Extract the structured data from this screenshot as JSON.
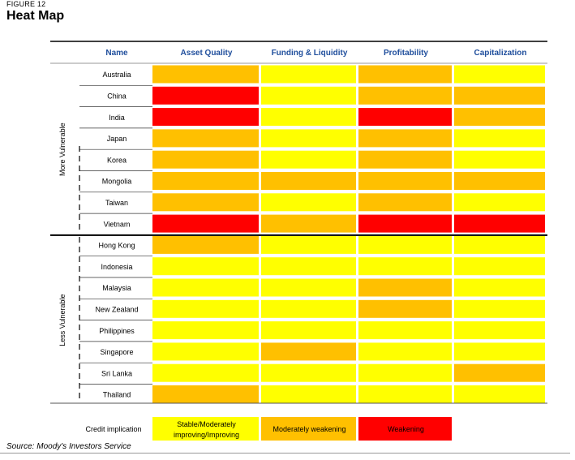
{
  "figure": {
    "label": "FIGURE 12",
    "title": "Heat Map",
    "source": "Source: Moody's Investors Service"
  },
  "colors": {
    "stable": "#ffff00",
    "moderate": "#ffc000",
    "weakening": "#ff0000",
    "header_text": "#1f4e9c"
  },
  "chart_data": {
    "type": "heatmap",
    "title": "Heat Map",
    "name_header": "Name",
    "columns": [
      "Asset Quality",
      "Funding & Liquidity",
      "Profitability",
      "Capitalization"
    ],
    "groups": [
      {
        "name": "More Vulnerable",
        "rows": [
          "Australia",
          "China",
          "India",
          "Japan",
          "Korea",
          "Mongolia",
          "Taiwan",
          "Vietnam"
        ]
      },
      {
        "name": "Less Vulnerable",
        "rows": [
          "Hong Kong",
          "Indonesia",
          "Malaysia",
          "New Zealand",
          "Philippines",
          "Singapore",
          "Sri Lanka",
          "Thailand"
        ]
      }
    ],
    "rows": [
      "Australia",
      "China",
      "India",
      "Japan",
      "Korea",
      "Mongolia",
      "Taiwan",
      "Vietnam",
      "Hong Kong",
      "Indonesia",
      "Malaysia",
      "New Zealand",
      "Philippines",
      "Singapore",
      "Sri Lanka",
      "Thailand"
    ],
    "levels": {
      "1": "Stable/Moderately improving/Improving",
      "2": "Moderately weakening",
      "3": "Weakening"
    },
    "values": [
      [
        2,
        1,
        2,
        1
      ],
      [
        3,
        1,
        2,
        2
      ],
      [
        3,
        1,
        3,
        2
      ],
      [
        2,
        1,
        2,
        1
      ],
      [
        2,
        1,
        2,
        1
      ],
      [
        2,
        2,
        2,
        2
      ],
      [
        2,
        1,
        2,
        1
      ],
      [
        3,
        2,
        3,
        3
      ],
      [
        2,
        1,
        1,
        1
      ],
      [
        1,
        1,
        1,
        1
      ],
      [
        1,
        1,
        2,
        1
      ],
      [
        1,
        1,
        2,
        1
      ],
      [
        1,
        1,
        1,
        1
      ],
      [
        1,
        2,
        1,
        1
      ],
      [
        1,
        1,
        1,
        2
      ],
      [
        2,
        1,
        1,
        1
      ]
    ],
    "legend": {
      "title": "Credit implication",
      "items": [
        {
          "level": 1,
          "lines": [
            "Stable/Moderately",
            "improving/Improving"
          ],
          "color": "#ffff00"
        },
        {
          "level": 2,
          "lines": [
            "Moderately weakening"
          ],
          "color": "#ffc000"
        },
        {
          "level": 3,
          "lines": [
            "Weakening"
          ],
          "color": "#ff0000"
        }
      ]
    }
  }
}
